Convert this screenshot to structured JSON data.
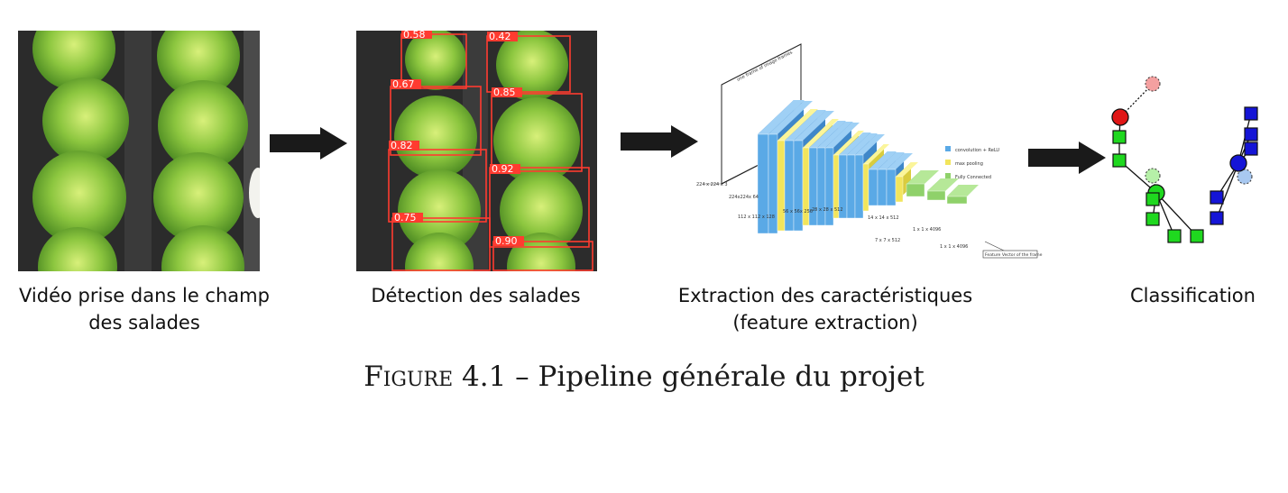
{
  "stages": [
    {
      "id": "video",
      "label_line1": "Vidéo prise dans le champ",
      "label_line2": "des salades",
      "image_icon": "lettuce-field-photo"
    },
    {
      "id": "detection",
      "label_line1": "Détection des salades",
      "image_icon": "lettuce-detection-photo",
      "detections": [
        "0.58",
        "0.42",
        "0.67",
        "0.85",
        "0.82",
        "0.92",
        "0.75",
        "0.90"
      ]
    },
    {
      "id": "features",
      "label_line1": "Extraction des caractéristiques",
      "label_line2": "(feature extraction)",
      "image_icon": "cnn-architecture-diagram",
      "legend": [
        "convolution + ReLU",
        "max pooling",
        "Fully Connected"
      ],
      "dims": [
        "224 x 224 x 3",
        "224x224x 64",
        "112 x 112 x 128",
        "56 x 56x 256",
        "28 x 28 x 512",
        "14 x 14 x 512",
        "7 x 7 x 512",
        "1 x 1 x 4096",
        "1 x 1 x 4096"
      ],
      "output_label": "Feature Vector of the frame",
      "input_label": "one frame of image frames"
    },
    {
      "id": "classification",
      "label_line1": "Classification",
      "image_icon": "graph-classification-diagram"
    }
  ],
  "caption": {
    "prefix": "Figure 4.1",
    "text": " – Pipeline générale du projet"
  },
  "colors": {
    "conv": "#5aa9e6",
    "pool": "#f2e55c",
    "fc": "#8fd16a",
    "arrow": "#1a1a1a",
    "red_node": "#e01616",
    "green_node": "#1fd81f",
    "blue_node": "#1515d6"
  }
}
